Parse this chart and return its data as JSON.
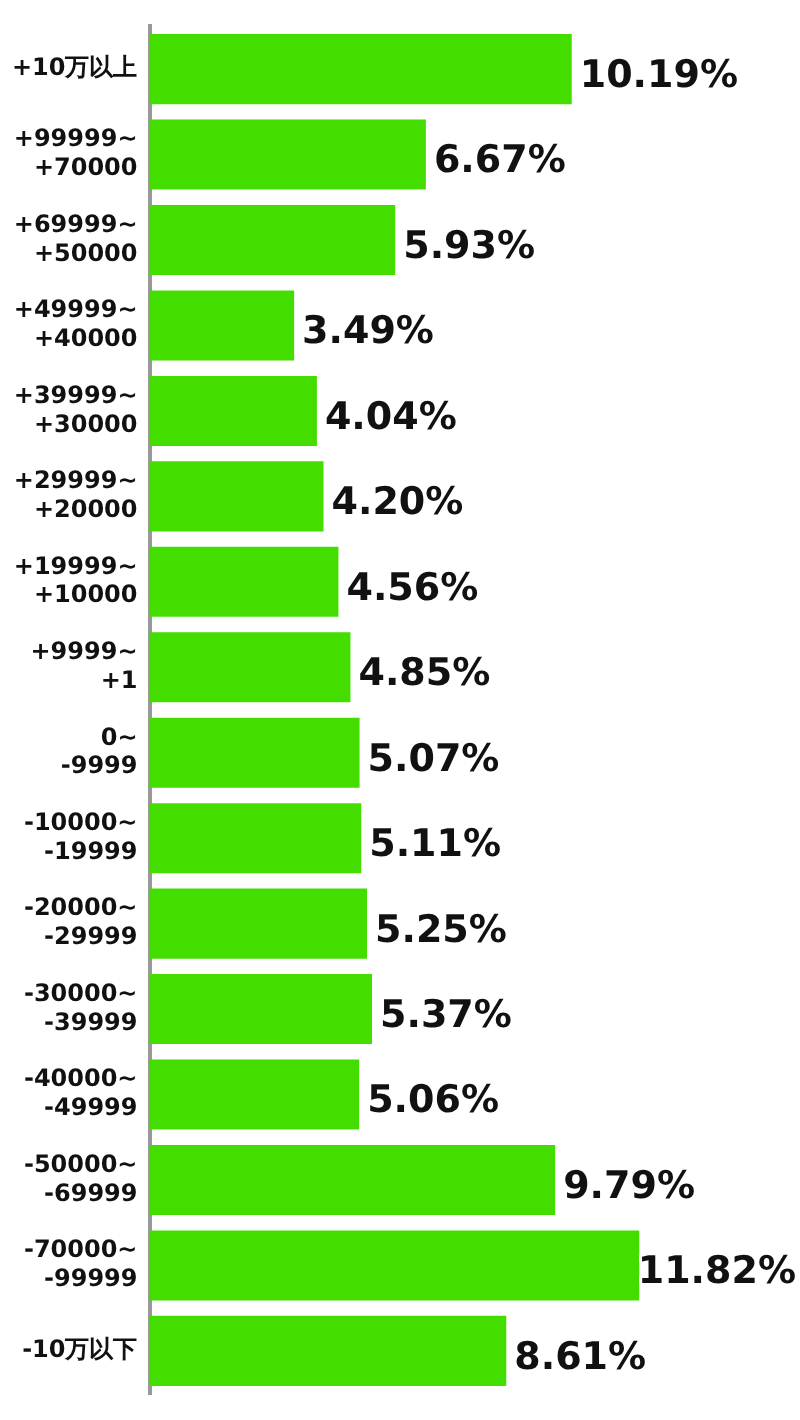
{
  "chart_data": {
    "type": "bar",
    "orientation": "horizontal",
    "categories": [
      "+10万以上",
      "+99999~\n+70000",
      "+69999~\n+50000",
      "+49999~\n+40000",
      "+39999~\n+30000",
      "+29999~\n+20000",
      "+19999~\n+10000",
      "+9999~\n+1",
      "0~\n-9999",
      "-10000~\n-19999",
      "-20000~\n-29999",
      "-30000~\n-39999",
      "-40000~\n-49999",
      "-50000~\n-69999",
      "-70000~\n-99999",
      "-10万以下"
    ],
    "values": [
      10.19,
      6.67,
      5.93,
      3.49,
      4.04,
      4.2,
      4.56,
      4.85,
      5.07,
      5.11,
      5.25,
      5.37,
      5.06,
      9.79,
      11.82,
      8.61
    ],
    "value_labels": [
      "10.19%",
      "6.67%",
      "5.93%",
      "3.49%",
      "4.04%",
      "4.20%",
      "4.56%",
      "4.85%",
      "5.07%",
      "5.11%",
      "5.25%",
      "5.37%",
      "5.06%",
      "9.79%",
      "11.82%",
      "8.61%"
    ],
    "color": "#44dd00",
    "grid": false,
    "legend": false
  }
}
